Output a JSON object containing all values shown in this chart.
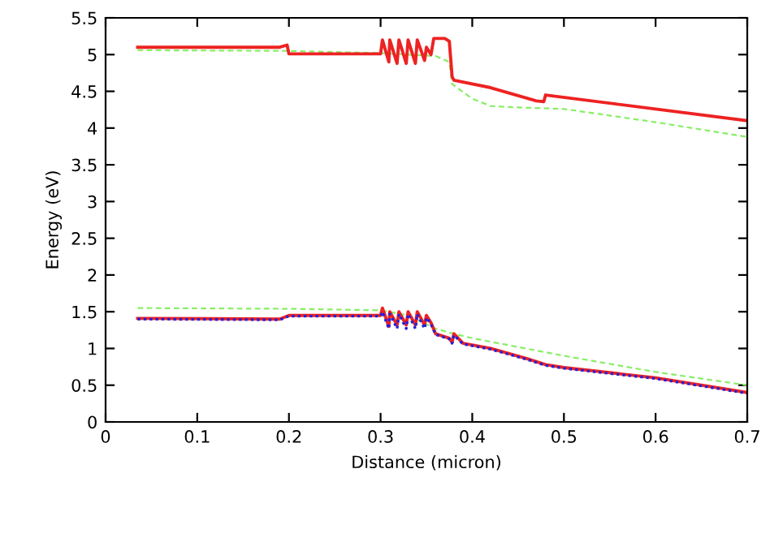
{
  "chart_data": {
    "type": "line",
    "xlabel": "Distance (micron)",
    "ylabel": "Energy (eV)",
    "xlim": [
      0,
      0.7
    ],
    "ylim": [
      0,
      5.5
    ],
    "xticks": [
      0,
      0.1,
      0.2,
      0.3,
      0.4,
      0.5,
      0.6,
      0.7
    ],
    "yticks": [
      0,
      0.5,
      1,
      1.5,
      2,
      2.5,
      3,
      3.5,
      4,
      4.5,
      5,
      5.5
    ],
    "grid": false,
    "marker": "none",
    "series": [
      {
        "color": "#88ee66",
        "line_style": "dashed",
        "x": [
          0.035,
          0.2,
          0.3,
          0.36,
          0.375,
          0.378,
          0.4,
          0.42,
          0.45,
          0.5,
          0.6,
          0.7
        ],
        "values": [
          5.06,
          5.05,
          5.02,
          4.98,
          4.9,
          4.6,
          4.4,
          4.3,
          4.28,
          4.26,
          4.08,
          3.88
        ]
      },
      {
        "color": "#ee2222",
        "line_style": "solid",
        "x": [
          0.035,
          0.19,
          0.198,
          0.2,
          0.3,
          0.302,
          0.309,
          0.31,
          0.318,
          0.32,
          0.328,
          0.33,
          0.338,
          0.34,
          0.348,
          0.35,
          0.355,
          0.358,
          0.37,
          0.375,
          0.378,
          0.38,
          0.42,
          0.47,
          0.478,
          0.48,
          0.7
        ],
        "values": [
          5.1,
          5.1,
          5.13,
          5.01,
          5.01,
          5.2,
          4.9,
          5.2,
          4.88,
          5.2,
          4.88,
          5.2,
          4.88,
          5.2,
          4.92,
          5.1,
          5.0,
          5.22,
          5.22,
          5.18,
          4.7,
          4.65,
          4.55,
          4.37,
          4.36,
          4.45,
          4.1
        ]
      },
      {
        "color": "#88ee66",
        "line_style": "dashed",
        "x": [
          0.035,
          0.2,
          0.3,
          0.33,
          0.36,
          0.38,
          0.4,
          0.45,
          0.5,
          0.6,
          0.7
        ],
        "values": [
          1.55,
          1.54,
          1.52,
          1.45,
          1.27,
          1.2,
          1.14,
          1.02,
          0.9,
          0.68,
          0.5
        ]
      },
      {
        "color": "#ee2222",
        "line_style": "solid",
        "x": [
          0.035,
          0.19,
          0.2,
          0.3,
          0.302,
          0.309,
          0.31,
          0.318,
          0.32,
          0.328,
          0.33,
          0.338,
          0.34,
          0.348,
          0.35,
          0.355,
          0.36,
          0.375,
          0.378,
          0.38,
          0.39,
          0.42,
          0.46,
          0.48,
          0.5,
          0.6,
          0.7
        ],
        "values": [
          1.41,
          1.4,
          1.45,
          1.45,
          1.55,
          1.3,
          1.5,
          1.32,
          1.5,
          1.32,
          1.5,
          1.32,
          1.5,
          1.32,
          1.45,
          1.35,
          1.2,
          1.14,
          1.08,
          1.2,
          1.07,
          1.0,
          0.86,
          0.78,
          0.74,
          0.6,
          0.4
        ]
      },
      {
        "color": "#2222dd",
        "line_style": "dotted",
        "x": [
          0.035,
          0.19,
          0.2,
          0.3,
          0.302,
          0.309,
          0.31,
          0.318,
          0.32,
          0.328,
          0.33,
          0.338,
          0.34,
          0.348,
          0.35,
          0.355,
          0.36,
          0.375,
          0.378,
          0.38,
          0.39,
          0.42,
          0.46,
          0.48,
          0.5,
          0.6,
          0.7
        ],
        "values": [
          1.4,
          1.39,
          1.44,
          1.44,
          1.5,
          1.27,
          1.47,
          1.27,
          1.47,
          1.27,
          1.47,
          1.27,
          1.47,
          1.27,
          1.42,
          1.33,
          1.19,
          1.13,
          1.07,
          1.18,
          1.06,
          0.99,
          0.85,
          0.77,
          0.73,
          0.59,
          0.39
        ]
      }
    ]
  }
}
